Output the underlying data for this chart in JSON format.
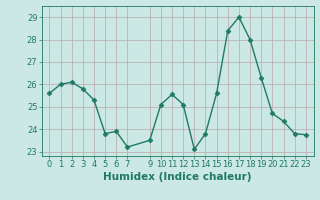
{
  "xlabel": "Humidex (Indice chaleur)",
  "x": [
    0,
    1,
    2,
    3,
    4,
    5,
    6,
    7,
    9,
    10,
    11,
    12,
    13,
    14,
    15,
    16,
    17,
    18,
    19,
    20,
    21,
    22,
    23
  ],
  "y": [
    25.6,
    26.0,
    26.1,
    25.8,
    25.3,
    23.8,
    23.9,
    23.2,
    23.5,
    25.1,
    25.55,
    25.1,
    23.1,
    23.8,
    25.6,
    28.4,
    29.0,
    28.0,
    26.3,
    24.7,
    24.35,
    23.8,
    23.75
  ],
  "line_color": "#1f7a64",
  "marker": "D",
  "marker_size": 2.5,
  "line_width": 1.0,
  "bg_color": "#cce8e4",
  "plot_bg_color": "#cce8e4",
  "grid_color": "#b8a8a8",
  "ylim": [
    22.8,
    29.5
  ],
  "yticks": [
    23,
    24,
    25,
    26,
    27,
    28,
    29
  ],
  "xtick_positions": [
    0,
    1,
    2,
    3,
    4,
    5,
    6,
    7,
    9,
    10,
    11,
    12,
    13,
    14,
    15,
    16,
    17,
    18,
    19,
    20,
    21,
    22,
    23
  ],
  "xtick_labels": [
    "0",
    "1",
    "2",
    "3",
    "4",
    "5",
    "6",
    "7",
    "9",
    "10",
    "11",
    "12",
    "13",
    "14",
    "15",
    "16",
    "17",
    "18",
    "19",
    "20",
    "21",
    "22",
    "23"
  ],
  "tick_label_color": "#1f7a64",
  "tick_label_size": 6,
  "xlabel_size": 7.5,
  "xlabel_color": "#1f7a64",
  "xlabel_weight": "bold"
}
